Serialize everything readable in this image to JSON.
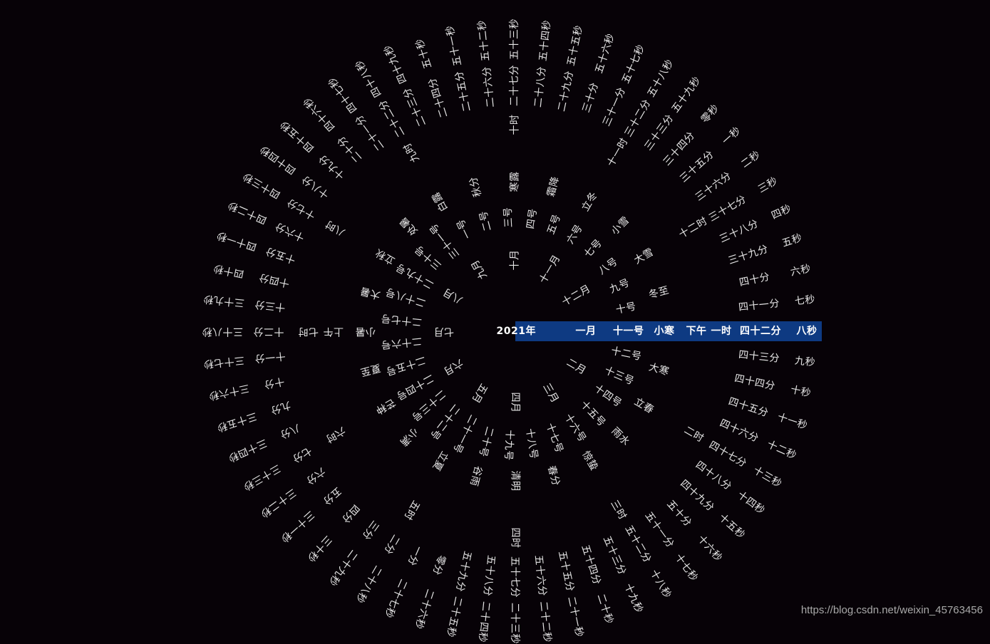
{
  "rings": {
    "year": {
      "items": [
        "2021年"
      ],
      "active": 0
    },
    "month": {
      "items": [
        "一月",
        "二月",
        "三月",
        "四月",
        "五月",
        "六月",
        "七月",
        "八月",
        "九月",
        "十月",
        "十一月",
        "十二月"
      ],
      "active": 0
    },
    "day": {
      "items": [
        "一号",
        "二号",
        "三号",
        "四号",
        "五号",
        "六号",
        "七号",
        "八号",
        "九号",
        "十号",
        "十一号",
        "十二号",
        "十三号",
        "十四号",
        "十五号",
        "十六号",
        "十七号",
        "十八号",
        "十九号",
        "二十号",
        "二十一号",
        "二十二号",
        "二十三号",
        "二十四号",
        "二十五号",
        "二十六号",
        "二十七号",
        "二十八号",
        "二十九号",
        "三十号",
        "三十一号"
      ],
      "active": 10
    },
    "term": {
      "items": [
        "小寒",
        "大寒",
        "立春",
        "雨水",
        "惊蛰",
        "春分",
        "清明",
        "谷雨",
        "立夏",
        "小满",
        "芒种",
        "夏至",
        "小暑",
        "大暑",
        "立秋",
        "处暑",
        "白露",
        "秋分",
        "寒露",
        "霜降",
        "立冬",
        "小雪",
        "大雪",
        "冬至"
      ],
      "active": 0
    },
    "ampm": {
      "items": [
        "下午",
        "上午"
      ],
      "active": 0
    },
    "hour": {
      "items": [
        "一时",
        "二时",
        "三时",
        "四时",
        "五时",
        "六时",
        "七时",
        "八时",
        "九时",
        "十时",
        "十一时",
        "十二时"
      ],
      "active": 0
    },
    "minute": {
      "items": [
        "四十二分",
        "四十三分",
        "四十四分",
        "四十五分",
        "四十六分",
        "四十七分",
        "四十八分",
        "四十九分",
        "五十分",
        "五十一分",
        "五十二分",
        "五十三分",
        "五十四分",
        "五十五分",
        "五十六分",
        "五十七分",
        "五十八分",
        "五十九分",
        "零分",
        "一分",
        "二分",
        "三分",
        "四分",
        "五分",
        "六分",
        "七分",
        "八分",
        "九分",
        "十分",
        "十一分",
        "十二分",
        "十三分",
        "十四分",
        "十五分",
        "十六分",
        "十七分",
        "十八分",
        "十九分",
        "二十分",
        "二十一分",
        "二十二分",
        "二十三分",
        "二十四分",
        "二十五分",
        "二十六分",
        "二十七分",
        "二十八分",
        "二十九分",
        "三十分",
        "三十一分",
        "三十二分",
        "三十三分",
        "三十四分",
        "三十五分",
        "三十六分",
        "三十七分",
        "三十八分",
        "三十九分",
        "四十分",
        "四十一分"
      ],
      "active": 0
    },
    "second": {
      "items": [
        "八秒",
        "九秒",
        "十秒",
        "十一秒",
        "十二秒",
        "十三秒",
        "十四秒",
        "十五秒",
        "十六秒",
        "十七秒",
        "十八秒",
        "十九秒",
        "二十秒",
        "二十一秒",
        "二十二秒",
        "二十三秒",
        "二十四秒",
        "二十五秒",
        "二十六秒",
        "二十七秒",
        "二十八秒",
        "二十九秒",
        "三十秒",
        "三十一秒",
        "三十二秒",
        "三十三秒",
        "三十四秒",
        "三十五秒",
        "三十六秒",
        "三十七秒",
        "三十八秒",
        "三十九秒",
        "四十秒",
        "四十一秒",
        "四十二秒",
        "四十三秒",
        "四十四秒",
        "四十五秒",
        "四十六秒",
        "四十七秒",
        "四十八秒",
        "四十九秒",
        "五十秒",
        "五十一秒",
        "五十二秒",
        "五十三秒",
        "五十四秒",
        "五十五秒",
        "五十六秒",
        "五十七秒",
        "五十八秒",
        "五十九秒",
        "零秒",
        "一秒",
        "二秒",
        "三秒",
        "四秒",
        "五秒",
        "六秒",
        "七秒"
      ],
      "active": 0
    }
  },
  "colors": {
    "background": "#070207",
    "highlight": "#0e3a82",
    "text": "#e6e6e6"
  },
  "watermark": "https://blog.csdn.net/weixin_45763456"
}
